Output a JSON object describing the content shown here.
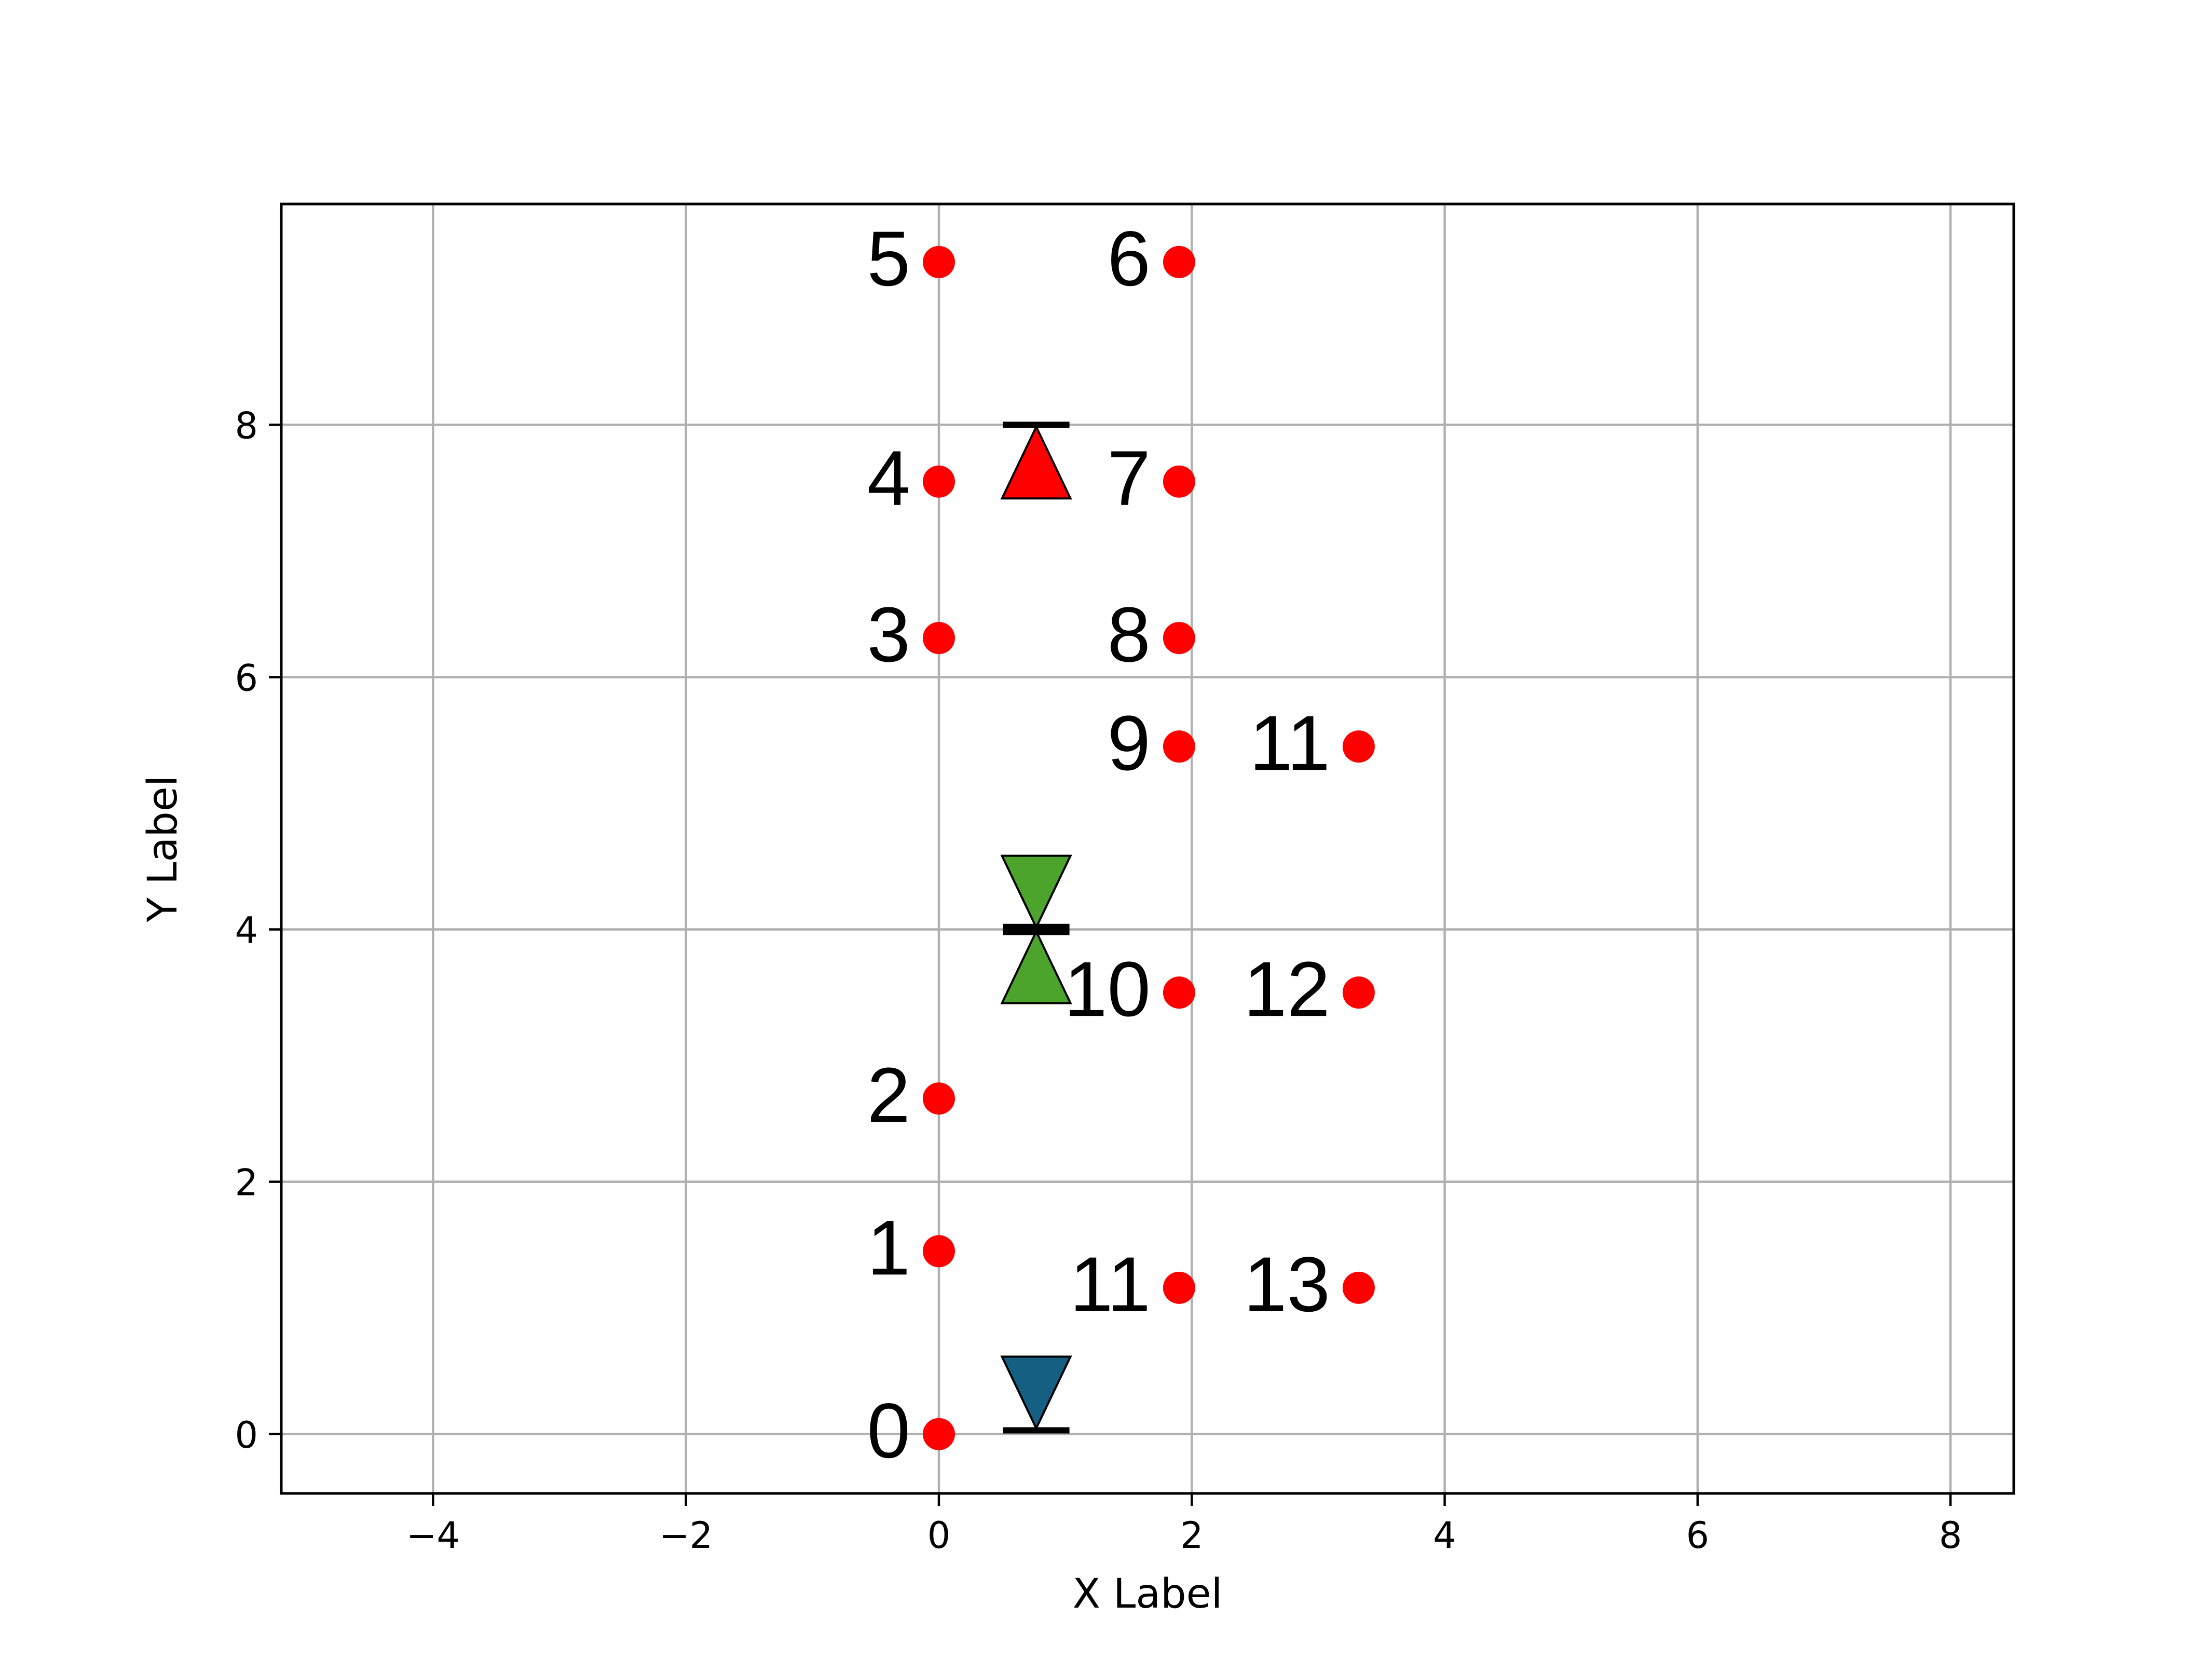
{
  "chart_data": {
    "type": "scatter",
    "title": "",
    "xlabel": "X Label",
    "ylabel": "Y Label",
    "xlim": [
      -5.2,
      8.5
    ],
    "ylim": [
      -0.47,
      9.75
    ],
    "grid": true,
    "x_ticks": [
      -4,
      -2,
      0,
      2,
      4,
      6,
      8
    ],
    "x_tick_labels": [
      "−4",
      "−2",
      "0",
      "2",
      "4",
      "6",
      "8"
    ],
    "y_ticks": [
      0,
      2,
      4,
      6,
      8
    ],
    "y_tick_labels": [
      "0",
      "2",
      "4",
      "6",
      "8"
    ],
    "points": [
      {
        "x": 0,
        "y": 0,
        "label": "0"
      },
      {
        "x": 0,
        "y": 1.45,
        "label": "1"
      },
      {
        "x": 0,
        "y": 2.66,
        "label": "2"
      },
      {
        "x": 0,
        "y": 6.31,
        "label": "3"
      },
      {
        "x": 0,
        "y": 7.55,
        "label": "4"
      },
      {
        "x": 0,
        "y": 9.29,
        "label": "5"
      },
      {
        "x": 1.9,
        "y": 9.29,
        "label": "6"
      },
      {
        "x": 1.9,
        "y": 7.55,
        "label": "7"
      },
      {
        "x": 1.9,
        "y": 6.31,
        "label": "8"
      },
      {
        "x": 1.9,
        "y": 5.45,
        "label": "9"
      },
      {
        "x": 1.9,
        "y": 3.5,
        "label": "10"
      },
      {
        "x": 1.9,
        "y": 1.16,
        "label": "11"
      },
      {
        "x": 3.32,
        "y": 5.45,
        "label": "11"
      },
      {
        "x": 3.32,
        "y": 3.5,
        "label": "12"
      },
      {
        "x": 3.32,
        "y": 1.16,
        "label": "13"
      }
    ],
    "point_color": "#ff0000",
    "markers": [
      {
        "x": 0.77,
        "y": 7.7,
        "shape": "triangle-up",
        "color": "#ff0000",
        "bar_y": 8.0
      },
      {
        "x": 0.77,
        "y": 4.3,
        "shape": "triangle-down",
        "color": "#4ca42c",
        "bar_y": 4.02
      },
      {
        "x": 0.77,
        "y": 3.7,
        "shape": "triangle-up",
        "color": "#4ca42c",
        "bar_y": 3.98
      },
      {
        "x": 0.77,
        "y": 0.33,
        "shape": "triangle-down",
        "color": "#155f82",
        "bar_y": 0.03
      }
    ],
    "grid_color": "#b0b0b0"
  }
}
